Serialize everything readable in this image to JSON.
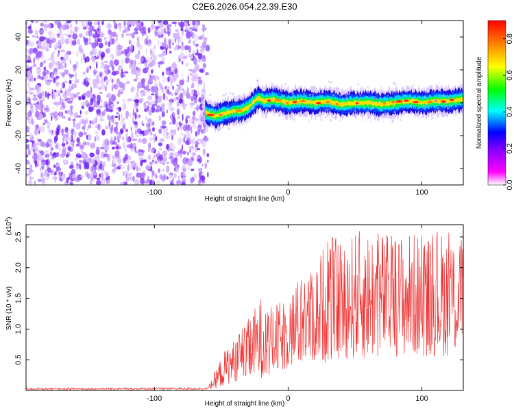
{
  "title": "C2E6.2026.054.22.39.E30",
  "chart_data": [
    {
      "type": "heatmap",
      "title": "C2E6.2026.054.22.39.E30",
      "xlabel": "Height of straight line (km)",
      "ylabel": "Frequency (Hz)",
      "xlim": [
        -196,
        131
      ],
      "ylim": [
        -50,
        50
      ],
      "x_ticks": [
        -100,
        0,
        100
      ],
      "y_ticks": [
        40,
        20,
        0,
        -20,
        -40
      ],
      "noise_region_x": [
        -196,
        -62
      ],
      "signal_track": {
        "x": [
          -62,
          -55,
          -50,
          -45,
          -40,
          -35,
          -30,
          -25,
          -22,
          -18,
          -12,
          -5,
          0,
          10,
          20,
          30,
          40,
          50,
          60,
          70,
          80,
          90,
          100,
          110,
          120,
          131
        ],
        "frequency": [
          -6,
          -8,
          -7,
          -6,
          -5,
          -5,
          -3,
          1,
          3,
          1,
          2,
          1,
          0,
          1,
          0,
          1,
          -1,
          0,
          0,
          -1,
          0,
          1,
          0,
          1,
          1,
          2
        ]
      },
      "colorbar": {
        "label": "Normalized spectral amplitude",
        "range": [
          0.0,
          0.9
        ],
        "ticks": [
          "0.0",
          "0.2",
          "0.4",
          "0.6",
          "0.8"
        ],
        "colors": [
          "#ffffff",
          "#ff00ff",
          "#8000ff",
          "#0000ff",
          "#00ffff",
          "#00ff00",
          "#ffff00",
          "#ff8000",
          "#ff0000"
        ]
      }
    },
    {
      "type": "line",
      "xlabel": "Height of straight line (km)",
      "ylabel": "SNR (10 * v/v)",
      "y_multiplier": "(x10",
      "y_multiplier_exp": "4",
      "y_multiplier_close": ")",
      "xlim": [
        -196,
        131
      ],
      "ylim": [
        0,
        2.7
      ],
      "x_ticks": [
        -100,
        0,
        100
      ],
      "y_ticks": [
        "0.5",
        "1.0",
        "1.5",
        "2.0",
        "2.5"
      ],
      "color": "#ee3333",
      "envelope": {
        "x": [
          -196,
          -60,
          -50,
          -45,
          -40,
          -30,
          -20,
          -15,
          -10,
          -5,
          0,
          10,
          20,
          30,
          40,
          50,
          60,
          70,
          80,
          90,
          100,
          110,
          120,
          131
        ],
        "min": [
          0.01,
          0.01,
          0.05,
          0.1,
          0.15,
          0.15,
          0.2,
          0.2,
          0.25,
          0.3,
          0.35,
          0.4,
          0.45,
          0.45,
          0.5,
          0.5,
          0.5,
          0.55,
          0.55,
          0.55,
          0.55,
          0.55,
          0.55,
          0.6
        ],
        "max": [
          0.04,
          0.05,
          0.55,
          0.75,
          0.85,
          1.15,
          1.55,
          1.35,
          1.4,
          1.45,
          1.6,
          1.9,
          2.0,
          2.6,
          2.4,
          2.6,
          2.65,
          2.6,
          2.55,
          2.6,
          2.55,
          2.6,
          2.6,
          2.5
        ]
      }
    }
  ]
}
